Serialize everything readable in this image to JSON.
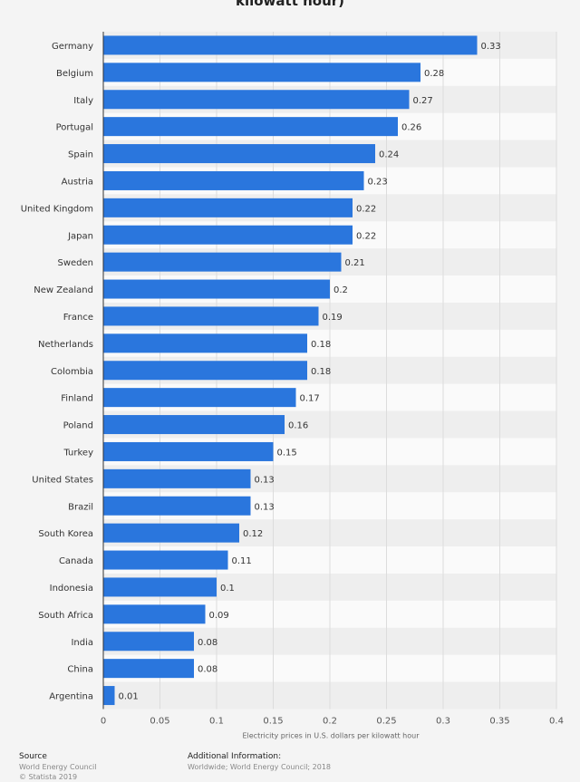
{
  "chart_data": {
    "type": "bar",
    "orientation": "horizontal",
    "title": "kilowatt hour)",
    "categories": [
      "Germany",
      "Belgium",
      "Italy",
      "Portugal",
      "Spain",
      "Austria",
      "United Kingdom",
      "Japan",
      "Sweden",
      "New Zealand",
      "France",
      "Netherlands",
      "Colombia",
      "Finland",
      "Poland",
      "Turkey",
      "United States",
      "Brazil",
      "South Korea",
      "Canada",
      "Indonesia",
      "South Africa",
      "India",
      "China",
      "Argentina"
    ],
    "values": [
      0.33,
      0.28,
      0.27,
      0.26,
      0.24,
      0.23,
      0.22,
      0.22,
      0.21,
      0.2,
      0.19,
      0.18,
      0.18,
      0.17,
      0.16,
      0.15,
      0.13,
      0.13,
      0.12,
      0.11,
      0.1,
      0.09,
      0.08,
      0.08,
      0.01
    ],
    "value_labels": [
      "0.33",
      "0.28",
      "0.27",
      "0.26",
      "0.24",
      "0.23",
      "0.22",
      "0.22",
      "0.21",
      "0.2",
      "0.19",
      "0.18",
      "0.18",
      "0.17",
      "0.16",
      "0.15",
      "0.13",
      "0.13",
      "0.12",
      "0.11",
      "0.1",
      "0.09",
      "0.08",
      "0.08",
      "0.01"
    ],
    "xlabel": "Electricity prices in U.S. dollars per kilowatt hour",
    "ylabel": "",
    "xlim": [
      0,
      0.4
    ],
    "x_ticks": [
      0,
      0.05,
      0.1,
      0.15,
      0.2,
      0.25,
      0.3,
      0.35,
      0.4
    ],
    "x_tick_labels": [
      "0",
      "0.05",
      "0.1",
      "0.15",
      "0.2",
      "0.25",
      "0.3",
      "0.35",
      "0.4"
    ],
    "grid": true,
    "bar_color": "#2a76dd"
  },
  "footer": {
    "source_heading": "Source",
    "source_line1": "World Energy Council",
    "source_line2": "© Statista 2019",
    "info_heading": "Additional Information:",
    "info_line1": "Worldwide; World Energy Council; 2018"
  }
}
